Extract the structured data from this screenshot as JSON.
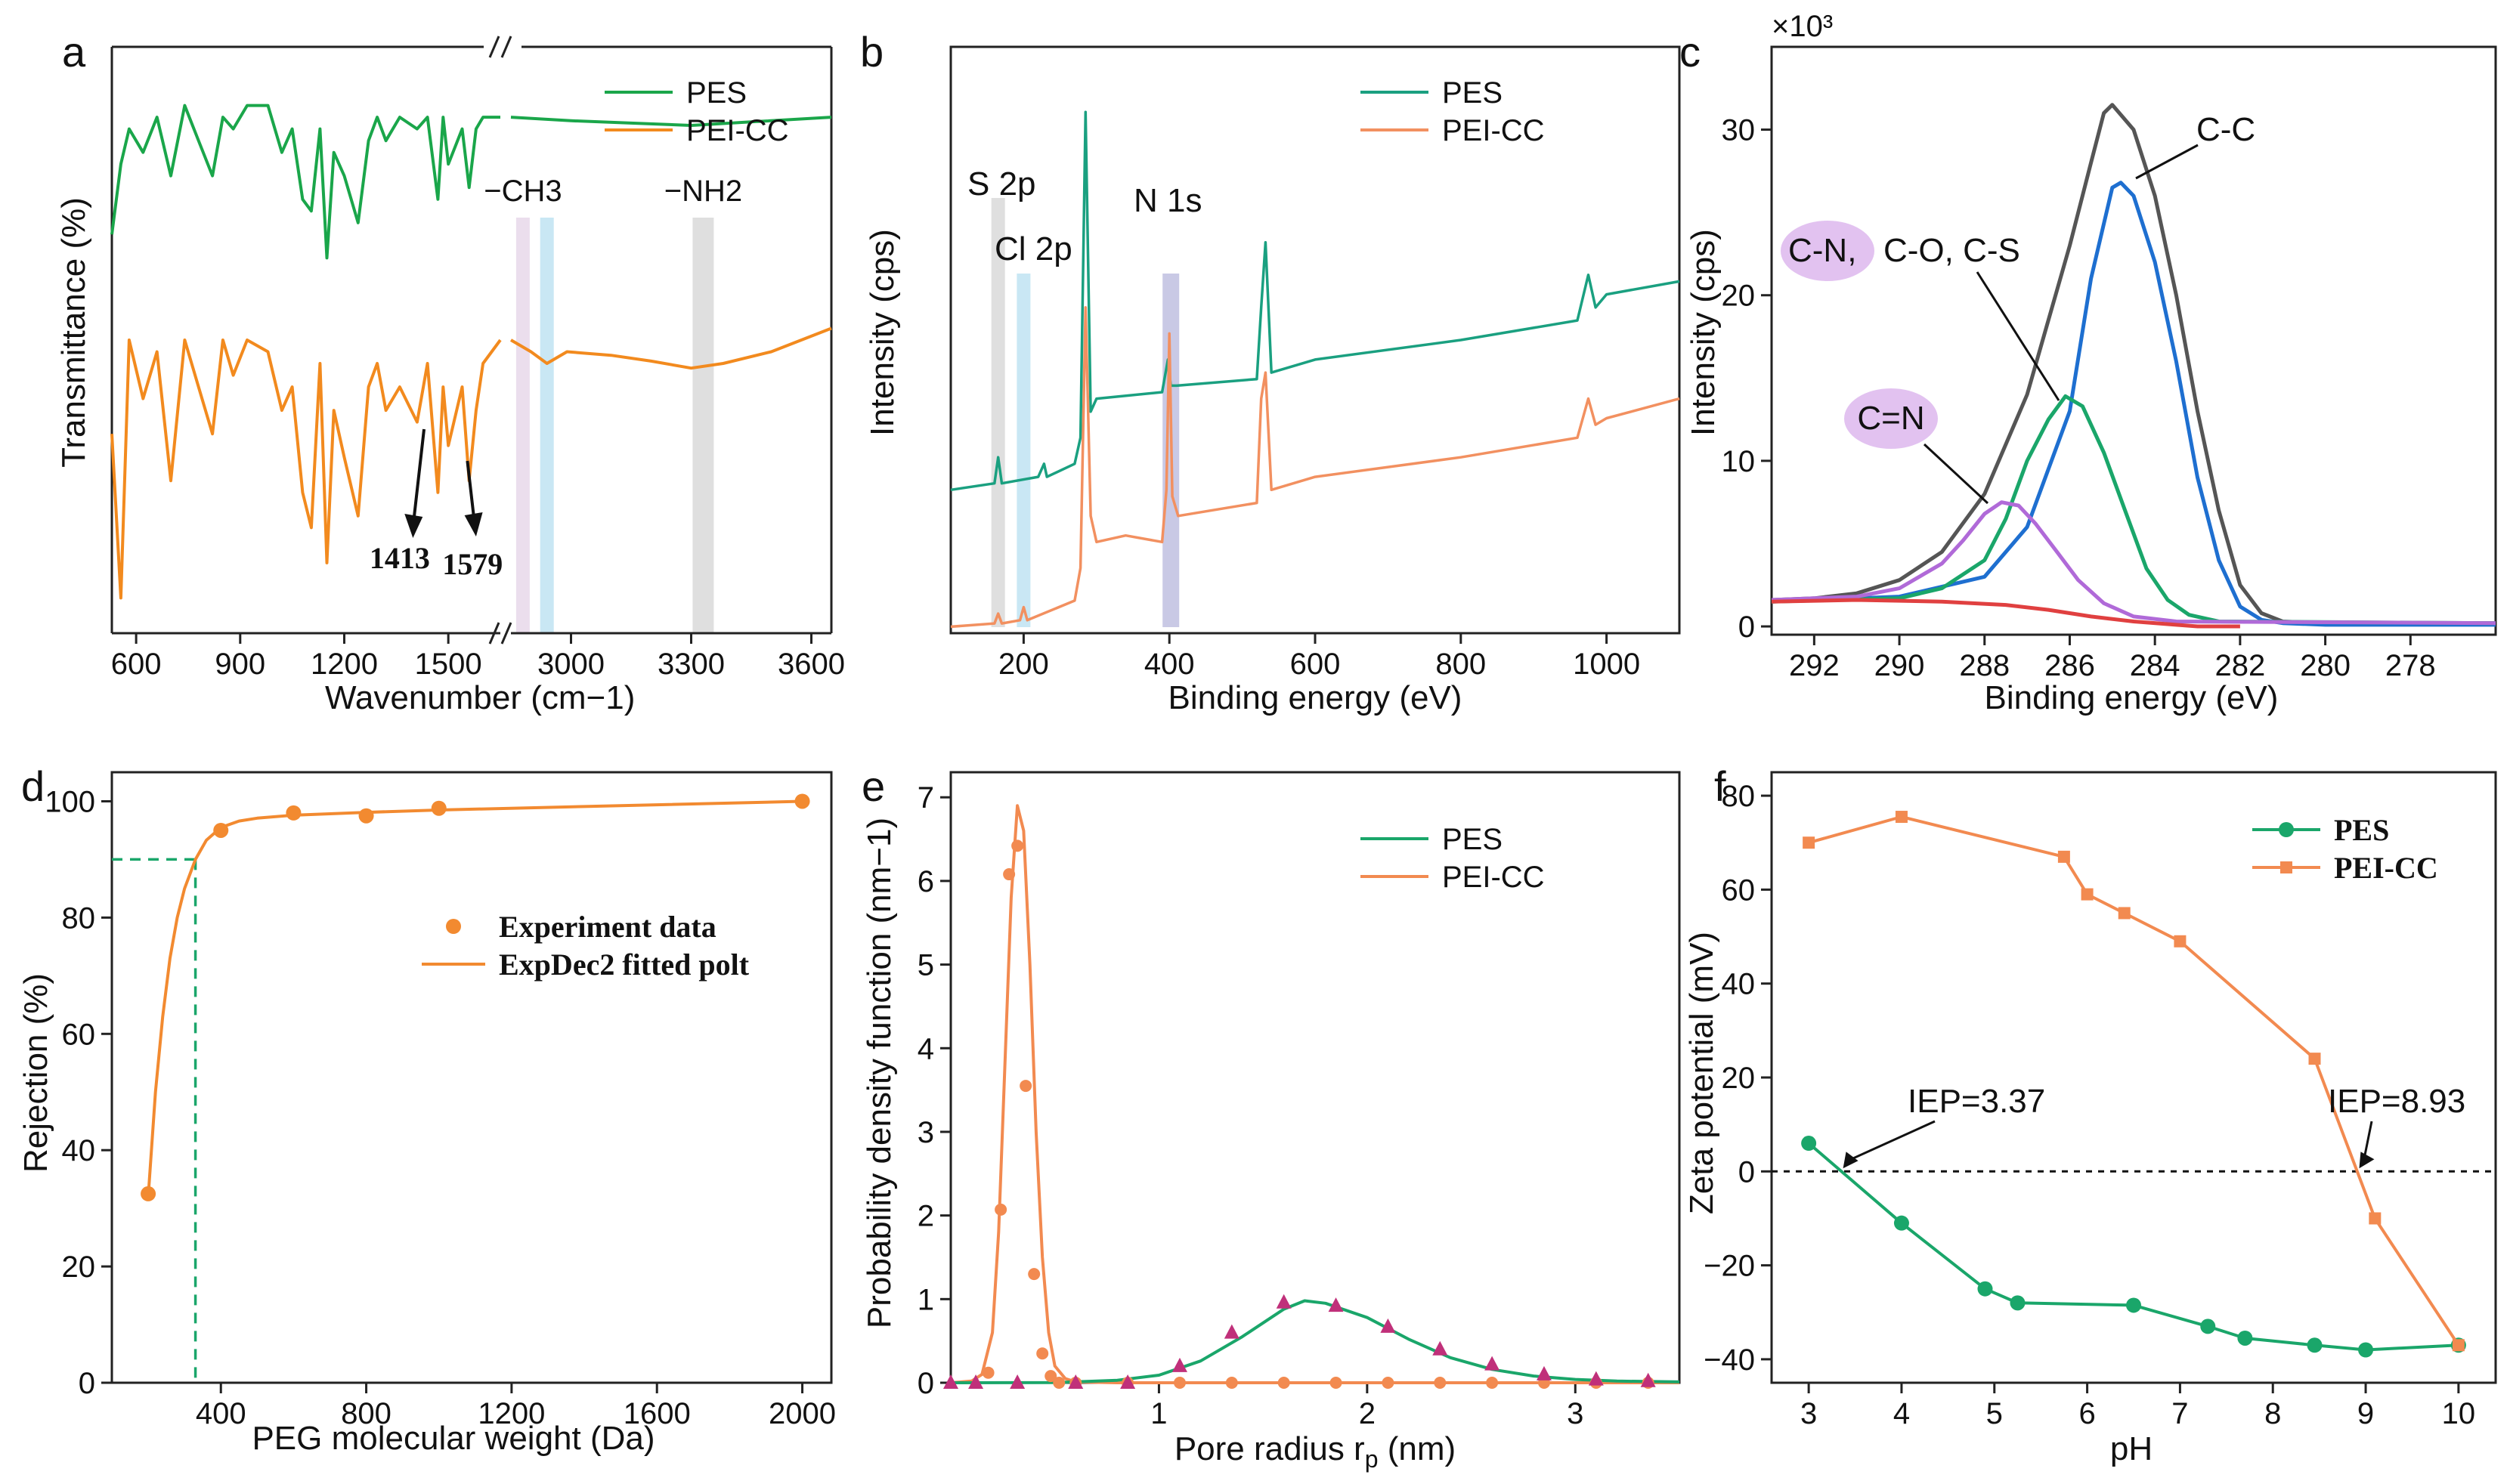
{
  "chart_data": [
    {
      "panel": "a",
      "type": "line",
      "xlabel": "Wavenumber (cm−1)",
      "ylabel": "Transmittance (%)",
      "xticks_left": [
        "600",
        "900",
        "1200",
        "1500"
      ],
      "xticks_right": [
        "3000",
        "3300",
        "3600"
      ],
      "xlim_left": [
        530,
        1650
      ],
      "xlim_right": [
        2850,
        3650
      ],
      "legend": [
        {
          "name": "PES",
          "color": "#1aa64a"
        },
        {
          "name": "PEI-CC",
          "color": "#f28a1e"
        }
      ],
      "band_labels": {
        "ch3": "−CH3",
        "nh2": "−NH2"
      },
      "bands": [
        {
          "x": 2880,
          "color": "#e8d8ea"
        },
        {
          "x": 2940,
          "color": "#bfe3f2"
        },
        {
          "x": 3330,
          "color": "#d9d9d9"
        }
      ],
      "peak_labels": {
        "p1": "1413",
        "p2": "1579"
      },
      "series": [
        {
          "name": "PES",
          "x": [
            530,
            556,
            580,
            620,
            660,
            700,
            740,
            780,
            820,
            850,
            880,
            920,
            980,
            1020,
            1050,
            1080,
            1105,
            1130,
            1150,
            1170,
            1200,
            1240,
            1270,
            1295,
            1320,
            1360,
            1410,
            1440,
            1470,
            1485,
            1500,
            1540,
            1560,
            1580,
            1600,
            1650
          ],
          "y": [
            79,
            85,
            88,
            86,
            89,
            84,
            90,
            87,
            84,
            89,
            88,
            90,
            90,
            86,
            88,
            82,
            81,
            88,
            77,
            86,
            84,
            80,
            87,
            89,
            87,
            89,
            88,
            89,
            82,
            89,
            85,
            88,
            83,
            88,
            89,
            89
          ]
        },
        {
          "name": "PES",
          "x": [
            2850,
            3000,
            3150,
            3300,
            3450,
            3650
          ],
          "y": [
            89,
            88.7,
            88.5,
            88.3,
            88.6,
            89
          ]
        },
        {
          "name": "PEI-CC",
          "x": [
            530,
            556,
            580,
            620,
            660,
            700,
            740,
            780,
            820,
            850,
            880,
            920,
            980,
            1020,
            1050,
            1080,
            1105,
            1130,
            1150,
            1170,
            1200,
            1240,
            1270,
            1295,
            1320,
            1360,
            1410,
            1440,
            1470,
            1485,
            1500,
            1540,
            1560,
            1580,
            1600,
            1650
          ],
          "y": [
            62,
            48,
            70,
            65,
            69,
            58,
            70,
            66,
            62,
            70,
            67,
            70,
            69,
            64,
            66,
            57,
            54,
            68,
            51,
            64,
            60,
            55,
            66,
            68,
            64,
            66,
            63,
            68,
            57,
            66,
            61,
            66,
            58,
            64,
            68,
            70
          ]
        },
        {
          "name": "PEI-CC",
          "x": [
            2850,
            2900,
            2940,
            2990,
            3100,
            3200,
            3300,
            3380,
            3500,
            3650
          ],
          "y": [
            70,
            69,
            68,
            69,
            68.7,
            68.2,
            67.6,
            68,
            69,
            71
          ]
        }
      ]
    },
    {
      "panel": "b",
      "type": "line",
      "xlabel": "Binding energy (eV)",
      "ylabel": "Intensity (cps)",
      "xlim": [
        100,
        1100
      ],
      "xticks": [
        "200",
        "400",
        "600",
        "800",
        "1000"
      ],
      "legend": [
        {
          "name": "PES",
          "color": "#1aa080"
        },
        {
          "name": "PEI-CC",
          "color": "#f29060"
        }
      ],
      "peak_labels": {
        "s2p": "S 2p",
        "cl2p": "Cl 2p",
        "n1s": "N 1s"
      },
      "bands": [
        {
          "x": 165,
          "color": "#d9d9d9"
        },
        {
          "x": 200,
          "color": "#bfe3f2"
        },
        {
          "x": 400,
          "color": "#c0c0e0"
        }
      ],
      "series": [
        {
          "name": "PES",
          "x": [
            100,
            160,
            165,
            170,
            220,
            228,
            232,
            270,
            278,
            285,
            292,
            300,
            390,
            398,
            402,
            410,
            520,
            526,
            532,
            540,
            600,
            800,
            960,
            975,
            985,
            1000,
            1100
          ],
          "y": [
            22,
            23,
            27,
            23,
            24,
            26,
            24,
            26,
            30,
            80,
            34,
            36,
            37,
            42,
            38,
            38,
            39,
            50,
            60,
            40,
            42,
            45,
            48,
            55,
            50,
            52,
            54
          ]
        },
        {
          "name": "PEI-CC",
          "x": [
            100,
            160,
            165,
            170,
            195,
            200,
            205,
            270,
            278,
            285,
            292,
            300,
            340,
            390,
            396,
            400,
            404,
            412,
            520,
            526,
            532,
            540,
            600,
            800,
            960,
            975,
            985,
            1000,
            1100
          ],
          "y": [
            1,
            1.5,
            3,
            1.5,
            2,
            4,
            2,
            5,
            10,
            50,
            18,
            14,
            15,
            14,
            22,
            46,
            21,
            18,
            20,
            36,
            40,
            22,
            24,
            27,
            30,
            36,
            32,
            33,
            36
          ]
        }
      ]
    },
    {
      "panel": "c",
      "type": "line",
      "xlabel": "Binding energy (eV)",
      "ylabel": "Intensity (cps)",
      "multiplier": "×10³",
      "xlim": [
        293,
        276
      ],
      "ylim": [
        0,
        35
      ],
      "xticks": [
        "292",
        "290",
        "288",
        "286",
        "284",
        "282",
        "280",
        "278"
      ],
      "yticks": [
        "0",
        "10",
        "20",
        "30"
      ],
      "annotations": {
        "cc": "C-C",
        "cn": "C-N,",
        "co_cs": "C-O, C-S",
        "c_eq_n": "C=N"
      },
      "series": [
        {
          "name": "Envelope",
          "color": "#555555",
          "x": [
            293,
            292,
            291,
            290,
            289,
            288,
            287,
            286.5,
            286,
            285.5,
            285.2,
            285,
            284.5,
            284,
            283.5,
            283,
            282.5,
            282,
            281.5,
            281,
            280,
            276
          ],
          "y": [
            1.6,
            1.7,
            2.0,
            2.8,
            4.5,
            8,
            14,
            18.5,
            23,
            28,
            31,
            31.5,
            30,
            26,
            20,
            13,
            7,
            2.5,
            0.8,
            0.3,
            0.2,
            0.2
          ]
        },
        {
          "name": "C-C",
          "color": "#1e6fd0",
          "x": [
            293,
            290,
            288,
            287,
            286,
            285.5,
            285,
            284.8,
            284.5,
            284,
            283.5,
            283,
            282.5,
            282,
            281.5,
            281,
            280,
            276
          ],
          "y": [
            1.5,
            1.8,
            3,
            6,
            13,
            21,
            26.5,
            26.8,
            26,
            22,
            16,
            9,
            4,
            1.2,
            0.4,
            0.2,
            0.1,
            0.1
          ]
        },
        {
          "name": "C-N, C-O, C-S",
          "color": "#1aa66a",
          "x": [
            293,
            290,
            289,
            288,
            287.5,
            287,
            286.5,
            286.1,
            285.7,
            285.2,
            284.7,
            284.2,
            283.7,
            283.2,
            282.5,
            276
          ],
          "y": [
            1.5,
            1.7,
            2.3,
            4,
            6.5,
            10,
            12.5,
            13.9,
            13.3,
            10.5,
            7,
            3.5,
            1.6,
            0.7,
            0.3,
            0.2
          ]
        },
        {
          "name": "C=N",
          "color": "#b06ad8",
          "x": [
            293,
            291,
            290,
            289,
            288.5,
            288,
            287.6,
            287.2,
            286.8,
            286.3,
            285.8,
            285.2,
            284.5,
            283.5,
            276
          ],
          "y": [
            1.6,
            1.8,
            2.3,
            3.8,
            5.2,
            6.8,
            7.5,
            7.3,
            6.2,
            4.5,
            2.8,
            1.4,
            0.6,
            0.3,
            0.2
          ]
        },
        {
          "name": "Baseline",
          "color": "#e04040",
          "x": [
            293,
            291,
            289,
            287.5,
            286.5,
            285.5,
            284.5,
            283.5,
            283,
            282
          ],
          "y": [
            1.5,
            1.6,
            1.5,
            1.3,
            1.0,
            0.6,
            0.3,
            0.1,
            0,
            0
          ]
        }
      ]
    },
    {
      "panel": "d",
      "type": "scatter",
      "xlabel": "PEG molecular weight (Da)",
      "ylabel": "Rejection (%)",
      "xlim": [
        100,
        2080
      ],
      "ylim": [
        0,
        105
      ],
      "xticks": [
        "400",
        "800",
        "1200",
        "1600",
        "2000"
      ],
      "yticks": [
        "0",
        "20",
        "40",
        "60",
        "80",
        "100"
      ],
      "legend": [
        {
          "name": "Experiment data",
          "color": "#f28a30"
        },
        {
          "name": "ExpDec2 fitted polt",
          "color": "#f28a30"
        }
      ],
      "cutoff": {
        "x": 330,
        "y": 90
      },
      "points": {
        "x": [
          200,
          400,
          600,
          800,
          1000,
          2000
        ],
        "y": [
          32.5,
          95,
          98,
          97.5,
          98.8,
          100
        ]
      },
      "fit": {
        "x": [
          200,
          220,
          240,
          260,
          280,
          300,
          330,
          360,
          400,
          450,
          500,
          600,
          800,
          1000,
          1400,
          2000
        ],
        "y": [
          32,
          50,
          63,
          73,
          80,
          85,
          90,
          93.3,
          95.5,
          96.6,
          97.1,
          97.6,
          98.1,
          98.5,
          99.1,
          100
        ]
      }
    },
    {
      "panel": "e",
      "type": "line",
      "xlabel": "Pore radius r",
      "xlabel_sub": "p",
      "xlabel_unit": " (nm)",
      "ylabel": "Probability density function (nm−1)",
      "xlim": [
        0,
        3.5
      ],
      "ylim": [
        0,
        7.3
      ],
      "xticks": [
        "1",
        "2",
        "3"
      ],
      "yticks": [
        "0",
        "1",
        "2",
        "3",
        "4",
        "5",
        "6",
        "7"
      ],
      "legend": [
        {
          "name": "PES",
          "color": "#1aa66a"
        },
        {
          "name": "PEI-CC",
          "color": "#f28a50"
        }
      ],
      "series": [
        {
          "name": "PEI-CC",
          "color": "#f28a50",
          "x": [
            0,
            0.1,
            0.15,
            0.2,
            0.23,
            0.26,
            0.29,
            0.32,
            0.35,
            0.38,
            0.41,
            0.44,
            0.47,
            0.5,
            0.55,
            0.6,
            0.8,
            3.5
          ],
          "y": [
            0,
            0.02,
            0.1,
            0.6,
            1.8,
            3.8,
            5.8,
            6.9,
            6.6,
            5.0,
            3.0,
            1.5,
            0.6,
            0.2,
            0.05,
            0.01,
            0,
            0
          ]
        },
        {
          "name": "PES",
          "color": "#1aa66a",
          "x": [
            0,
            0.5,
            0.8,
            1.0,
            1.2,
            1.4,
            1.6,
            1.7,
            1.8,
            2.0,
            2.2,
            2.4,
            2.6,
            2.8,
            3.0,
            3.2,
            3.5
          ],
          "y": [
            0,
            0.002,
            0.03,
            0.09,
            0.26,
            0.55,
            0.88,
            0.98,
            0.95,
            0.78,
            0.52,
            0.3,
            0.16,
            0.08,
            0.04,
            0.02,
            0.01
          ]
        }
      ],
      "points_orange": {
        "x": [
          0.18,
          0.24,
          0.28,
          0.32,
          0.36,
          0.4,
          0.44,
          0.48,
          0.52,
          0.6,
          0.85,
          1.1,
          1.35,
          1.6,
          1.85,
          2.1,
          2.35,
          2.6,
          2.85,
          3.1,
          3.35
        ],
        "y": [
          0.12,
          2.07,
          6.08,
          6.42,
          3.55,
          1.3,
          0.35,
          0.08,
          0,
          0,
          0,
          0,
          0,
          0,
          0,
          0,
          0,
          0,
          0,
          0,
          0
        ]
      },
      "points_triangle": {
        "x": [
          0,
          0.12,
          0.32,
          0.6,
          0.85,
          1.1,
          1.35,
          1.6,
          1.85,
          2.1,
          2.35,
          2.6,
          2.85,
          3.1,
          3.35
        ],
        "y": [
          0,
          0,
          0,
          0,
          0,
          0.2,
          0.6,
          0.96,
          0.92,
          0.67,
          0.4,
          0.22,
          0.1,
          0.04,
          0.02
        ]
      }
    },
    {
      "panel": "f",
      "type": "line",
      "xlabel": "pH",
      "ylabel": "Zeta potential (mV)",
      "xlim": [
        2.6,
        10.4
      ],
      "ylim": [
        -45,
        85
      ],
      "xticks": [
        "3",
        "4",
        "5",
        "6",
        "7",
        "8",
        "9",
        "10"
      ],
      "yticks": [
        "−40",
        "−20",
        "0",
        "20",
        "40",
        "60",
        "80"
      ],
      "legend": [
        {
          "name": "PES",
          "color": "#1aa66a"
        },
        {
          "name": "PEI-CC",
          "color": "#f28a50"
        }
      ],
      "annotations": {
        "iep1": "IEP=3.37",
        "iep2": "IEP=8.93"
      },
      "iep_points": [
        3.37,
        8.93
      ],
      "series": [
        {
          "name": "PES",
          "color": "#1aa66a",
          "x": [
            3.0,
            4.0,
            4.9,
            5.25,
            6.5,
            7.3,
            7.7,
            8.45,
            9.0,
            10.0
          ],
          "y": [
            6,
            -11,
            -25,
            -28,
            -28.5,
            -33,
            -35.5,
            -37,
            -38,
            -37
          ]
        },
        {
          "name": "PEI-CC",
          "color": "#f28a50",
          "x": [
            3.0,
            4.0,
            5.75,
            6.0,
            6.4,
            7.0,
            8.45,
            9.1,
            10.0
          ],
          "y": [
            70,
            75.5,
            67,
            59,
            55,
            49,
            24,
            -10,
            -37
          ]
        }
      ]
    }
  ],
  "panel_labels": [
    "a",
    "b",
    "c",
    "d",
    "e",
    "f"
  ]
}
